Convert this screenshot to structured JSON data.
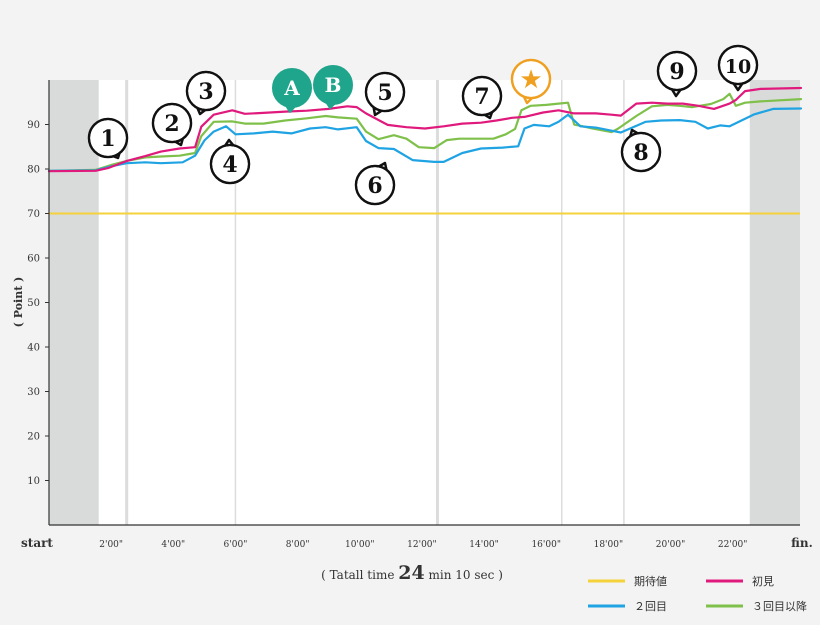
{
  "chart_data": {
    "type": "line",
    "ylabel": "( Point )",
    "ylim": [
      0,
      100
    ],
    "y_ticks": [
      "10",
      "20",
      "30",
      "40",
      "50",
      "60",
      "70",
      "80",
      "90"
    ],
    "x_ticks": [
      "start",
      "2'00\"",
      "4'00\"",
      "6'00\"",
      "8'00\"",
      "10'00\"",
      "12'00\"",
      "14'00\"",
      "16'00\"",
      "18'00\"",
      "20'00\"",
      "22'00\"",
      "fin."
    ],
    "total_time": {
      "prefix": "( Tatall time ",
      "minutes": "24",
      "min_label": " min ",
      "seconds": "10",
      "suffix": " sec )"
    },
    "expected_value": {
      "name": "期待値",
      "value": 70,
      "color": "#f5d23a"
    },
    "series": [
      {
        "name": "初見",
        "color": "#e0197d",
        "points": [
          [
            0.0,
            79.5
          ],
          [
            1.5,
            79.6
          ],
          [
            1.9,
            80.2
          ],
          [
            2.5,
            81.8
          ],
          [
            3.1,
            82.9
          ],
          [
            3.6,
            83.9
          ],
          [
            4.2,
            84.6
          ],
          [
            4.7,
            84.9
          ],
          [
            4.9,
            89.5
          ],
          [
            5.3,
            92.2
          ],
          [
            5.9,
            93.2
          ],
          [
            6.3,
            92.4
          ],
          [
            6.9,
            92.6
          ],
          [
            7.6,
            92.9
          ],
          [
            8.3,
            93.1
          ],
          [
            9.0,
            93.5
          ],
          [
            9.6,
            94.1
          ],
          [
            9.9,
            93.9
          ],
          [
            10.2,
            92.5
          ],
          [
            10.9,
            89.9
          ],
          [
            11.5,
            89.4
          ],
          [
            12.1,
            89.1
          ],
          [
            12.7,
            89.6
          ],
          [
            13.3,
            90.2
          ],
          [
            13.9,
            90.4
          ],
          [
            14.4,
            90.9
          ],
          [
            14.9,
            91.5
          ],
          [
            15.3,
            91.7
          ],
          [
            15.9,
            92.7
          ],
          [
            16.4,
            93.2
          ],
          [
            16.9,
            92.5
          ],
          [
            17.6,
            92.5
          ],
          [
            18.1,
            92.2
          ],
          [
            18.4,
            92.0
          ],
          [
            18.9,
            94.7
          ],
          [
            19.4,
            94.9
          ],
          [
            19.9,
            94.7
          ],
          [
            20.4,
            94.7
          ],
          [
            20.9,
            94.2
          ],
          [
            21.4,
            93.5
          ],
          [
            21.9,
            94.7
          ],
          [
            22.1,
            95.5
          ],
          [
            22.4,
            97.5
          ],
          [
            22.9,
            98.0
          ],
          [
            24.2,
            98.2
          ]
        ]
      },
      {
        "name": "２回目",
        "color": "#1fa3e3",
        "points": [
          [
            0.0,
            79.6
          ],
          [
            1.5,
            79.7
          ],
          [
            2.0,
            80.6
          ],
          [
            2.5,
            81.3
          ],
          [
            3.1,
            81.5
          ],
          [
            3.6,
            81.3
          ],
          [
            4.3,
            81.5
          ],
          [
            4.7,
            83.0
          ],
          [
            5.0,
            86.4
          ],
          [
            5.3,
            88.4
          ],
          [
            5.7,
            89.6
          ],
          [
            6.0,
            87.8
          ],
          [
            6.6,
            88.0
          ],
          [
            7.2,
            88.4
          ],
          [
            7.8,
            88.0
          ],
          [
            8.4,
            89.1
          ],
          [
            8.9,
            89.4
          ],
          [
            9.3,
            88.9
          ],
          [
            9.9,
            89.4
          ],
          [
            10.2,
            86.3
          ],
          [
            10.6,
            84.7
          ],
          [
            11.1,
            84.5
          ],
          [
            11.7,
            82.0
          ],
          [
            12.4,
            81.6
          ],
          [
            12.7,
            81.6
          ],
          [
            13.3,
            83.6
          ],
          [
            13.9,
            84.6
          ],
          [
            14.6,
            84.8
          ],
          [
            15.1,
            85.1
          ],
          [
            15.3,
            89.1
          ],
          [
            15.6,
            89.9
          ],
          [
            16.1,
            89.6
          ],
          [
            16.4,
            90.6
          ],
          [
            16.7,
            92.2
          ],
          [
            17.1,
            89.6
          ],
          [
            17.6,
            89.3
          ],
          [
            18.1,
            88.6
          ],
          [
            18.4,
            88.2
          ],
          [
            18.7,
            89.1
          ],
          [
            19.2,
            90.6
          ],
          [
            19.7,
            90.9
          ],
          [
            20.3,
            91.0
          ],
          [
            20.8,
            90.6
          ],
          [
            21.2,
            89.1
          ],
          [
            21.6,
            89.8
          ],
          [
            21.9,
            89.6
          ],
          [
            22.2,
            90.6
          ],
          [
            22.7,
            92.3
          ],
          [
            23.3,
            93.5
          ],
          [
            24.2,
            93.6
          ]
        ]
      },
      {
        "name": "３回目以降",
        "color": "#7fc04a",
        "points": [
          [
            0.0,
            79.6
          ],
          [
            1.5,
            79.8
          ],
          [
            2.0,
            80.9
          ],
          [
            2.5,
            81.8
          ],
          [
            3.1,
            82.6
          ],
          [
            3.6,
            82.8
          ],
          [
            4.2,
            83.0
          ],
          [
            4.7,
            83.6
          ],
          [
            4.9,
            87.4
          ],
          [
            5.3,
            90.6
          ],
          [
            5.9,
            90.7
          ],
          [
            6.3,
            90.2
          ],
          [
            6.9,
            90.2
          ],
          [
            7.6,
            90.9
          ],
          [
            8.3,
            91.4
          ],
          [
            8.9,
            91.9
          ],
          [
            9.3,
            91.6
          ],
          [
            9.9,
            91.3
          ],
          [
            10.2,
            88.4
          ],
          [
            10.6,
            86.7
          ],
          [
            11.1,
            87.6
          ],
          [
            11.5,
            86.8
          ],
          [
            11.9,
            84.9
          ],
          [
            12.4,
            84.7
          ],
          [
            12.8,
            86.5
          ],
          [
            13.2,
            86.8
          ],
          [
            13.9,
            86.8
          ],
          [
            14.3,
            86.8
          ],
          [
            14.7,
            87.8
          ],
          [
            15.0,
            89.0
          ],
          [
            15.2,
            93.2
          ],
          [
            15.5,
            94.2
          ],
          [
            16.0,
            94.4
          ],
          [
            16.4,
            94.7
          ],
          [
            16.7,
            94.9
          ],
          [
            16.9,
            90.0
          ],
          [
            17.5,
            89.1
          ],
          [
            18.1,
            88.3
          ],
          [
            18.3,
            89.0
          ],
          [
            18.9,
            91.9
          ],
          [
            19.4,
            94.1
          ],
          [
            19.9,
            94.4
          ],
          [
            20.3,
            94.2
          ],
          [
            20.7,
            93.9
          ],
          [
            21.3,
            94.6
          ],
          [
            21.7,
            95.7
          ],
          [
            21.9,
            96.9
          ],
          [
            22.1,
            94.2
          ],
          [
            22.4,
            94.9
          ],
          [
            22.9,
            95.2
          ],
          [
            24.2,
            95.7
          ]
        ]
      }
    ],
    "annotations": [
      {
        "label": "1",
        "kind": "num"
      },
      {
        "label": "2",
        "kind": "num"
      },
      {
        "label": "3",
        "kind": "num"
      },
      {
        "label": "4",
        "kind": "num"
      },
      {
        "label": "A",
        "kind": "letter",
        "color": "#1fa58c"
      },
      {
        "label": "B",
        "kind": "letter",
        "color": "#1fa58c"
      },
      {
        "label": "5",
        "kind": "num"
      },
      {
        "label": "6",
        "kind": "num"
      },
      {
        "label": "7",
        "kind": "num"
      },
      {
        "label": "★",
        "kind": "star",
        "color": "#f0a021"
      },
      {
        "label": "8",
        "kind": "num"
      },
      {
        "label": "9",
        "kind": "num"
      },
      {
        "label": "10",
        "kind": "num"
      }
    ],
    "legend": [
      {
        "name": "期待値",
        "color": "#f5d23a"
      },
      {
        "name": "初見",
        "color": "#e0197d"
      },
      {
        "name": "２回目",
        "color": "#1fa3e3"
      },
      {
        "name": "３回目以降",
        "color": "#7fc04a"
      }
    ]
  }
}
